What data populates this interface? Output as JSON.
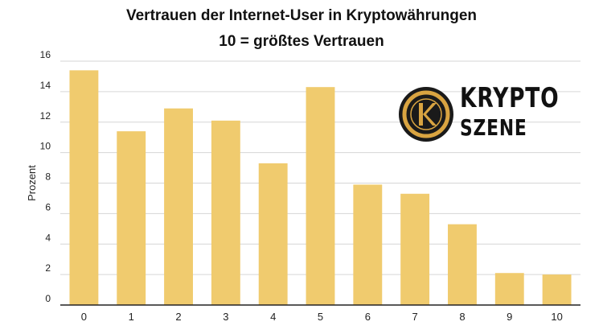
{
  "chart_data": {
    "type": "bar",
    "title": "Vertrauen der Internet-User in Kryptowährungen",
    "subtitle": "10 = größtes Vertrauen",
    "xlabel": "",
    "ylabel": "Prozent",
    "categories": [
      "0",
      "1",
      "2",
      "3",
      "4",
      "5",
      "6",
      "7",
      "8",
      "9",
      "10"
    ],
    "values": [
      15.4,
      11.4,
      12.9,
      12.1,
      9.3,
      14.3,
      7.9,
      7.3,
      5.3,
      2.1,
      2.0
    ],
    "ylim": [
      0,
      16
    ],
    "yticks": [
      "0",
      "2",
      "4",
      "6",
      "8",
      "10",
      "12",
      "14",
      "16"
    ],
    "grid": true,
    "bar_color": "#f0cb6e"
  },
  "logo": {
    "line1": "KRYPTO",
    "line2": "SZENE",
    "ring_color": "#d9a441",
    "dark_color": "#1a1a1a"
  }
}
